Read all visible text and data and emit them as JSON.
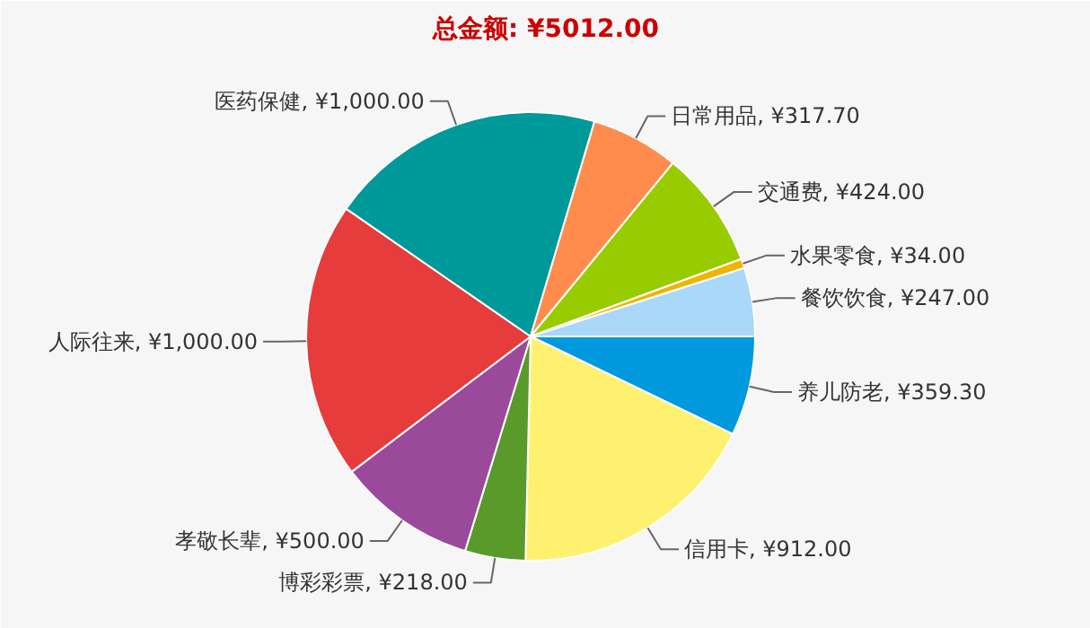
{
  "chart_data": {
    "type": "pie",
    "title": "总金额: ¥5012.00",
    "categories": [
      "养儿防老",
      "信用卡",
      "博彩彩票",
      "孝敬长辈",
      "人际往来",
      "医药保健",
      "日常用品",
      "交通费",
      "水果零食",
      "餐饮饮食"
    ],
    "values": [
      359.3,
      912,
      218,
      500,
      1000,
      1000,
      317.7,
      424,
      34,
      247
    ],
    "value_labels": [
      "¥359.30",
      "¥912.00",
      "¥218.00",
      "¥500.00",
      "¥1,000.00",
      "¥1,000.00",
      "¥317.70",
      "¥424.00",
      "¥34.00",
      "¥247.00"
    ],
    "colors": [
      "#0099dd",
      "#fff170",
      "#5a9a2a",
      "#9b4a9b",
      "#e63c3c",
      "#009999",
      "#ff8c4c",
      "#99cc00",
      "#f0b400",
      "#aad8f8"
    ],
    "legend": false
  }
}
